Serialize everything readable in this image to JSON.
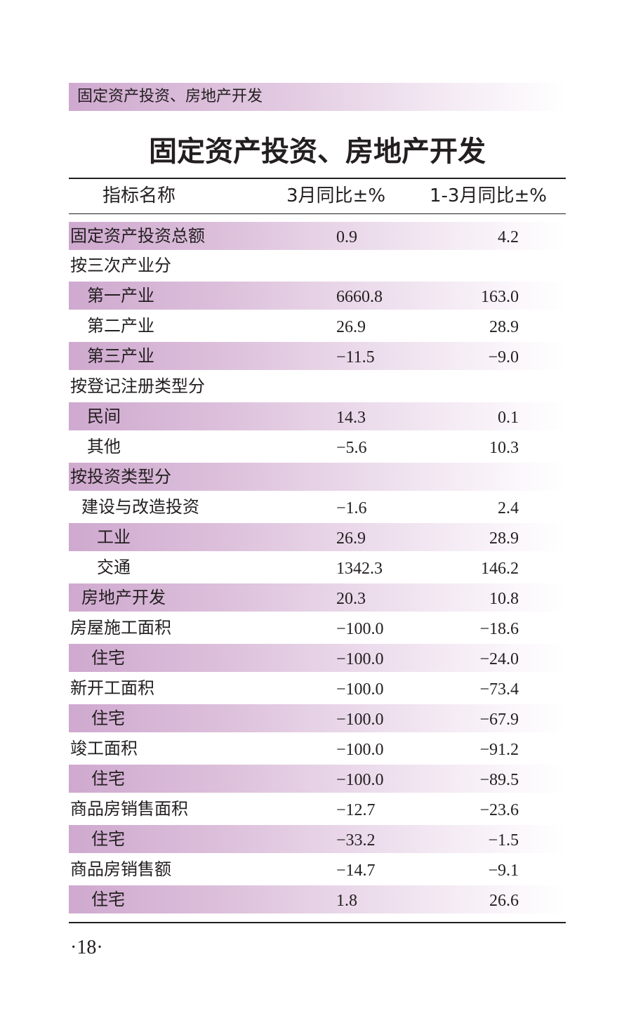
{
  "header": {
    "section_label": "固定资产投资、房地产开发"
  },
  "table": {
    "title": "固定资产投资、房地产开发",
    "columns": [
      "指标名称",
      "3月同比±%",
      "1-3月同比±%"
    ],
    "rows": [
      {
        "label": "固定资产投资总额",
        "a": "0.9",
        "b": "4.2"
      },
      {
        "label": "按三次产业分",
        "a": "",
        "b": ""
      },
      {
        "label": "第一产业",
        "a": "6660.8",
        "b": "163.0"
      },
      {
        "label": "第二产业",
        "a": "26.9",
        "b": "28.9"
      },
      {
        "label": "第三产业",
        "a": "−11.5",
        "b": "−9.0"
      },
      {
        "label": "按登记注册类型分",
        "a": "",
        "b": ""
      },
      {
        "label": "民间",
        "a": "14.3",
        "b": "0.1"
      },
      {
        "label": "其他",
        "a": "−5.6",
        "b": "10.3"
      },
      {
        "label": "按投资类型分",
        "a": "",
        "b": ""
      },
      {
        "label": "建设与改造投资",
        "a": "−1.6",
        "b": "2.4"
      },
      {
        "label": "工业",
        "a": "26.9",
        "b": "28.9"
      },
      {
        "label": "交通",
        "a": "1342.3",
        "b": "146.2"
      },
      {
        "label": "房地产开发",
        "a": "20.3",
        "b": "10.8"
      },
      {
        "label": "房屋施工面积",
        "a": "−100.0",
        "b": "−18.6"
      },
      {
        "label": "住宅",
        "a": "−100.0",
        "b": "−24.0"
      },
      {
        "label": "新开工面积",
        "a": "−100.0",
        "b": "−73.4"
      },
      {
        "label": "住宅",
        "a": "−100.0",
        "b": "−67.9"
      },
      {
        "label": "竣工面积",
        "a": "−100.0",
        "b": "−91.2"
      },
      {
        "label": "住宅",
        "a": "−100.0",
        "b": "−89.5"
      },
      {
        "label": "商品房销售面积",
        "a": "−12.7",
        "b": "−23.6"
      },
      {
        "label": "住宅",
        "a": "−33.2",
        "b": "−1.5"
      },
      {
        "label": "商品房销售额",
        "a": "−14.7",
        "b": "−9.1"
      },
      {
        "label": "住宅",
        "a": "1.8",
        "b": "26.6"
      }
    ]
  },
  "footer": {
    "page_number": "·18·"
  },
  "colors": {
    "band_start": "#cfa9cf",
    "band_end": "#ffffff",
    "text": "#231f20"
  }
}
